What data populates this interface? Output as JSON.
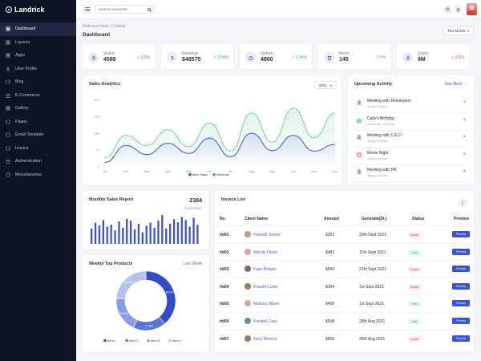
{
  "app": {
    "name": "Landrick"
  },
  "sidebar": {
    "items": [
      {
        "label": "Dashboard",
        "icon": "dashboard-icon",
        "active": true
      },
      {
        "label": "Layouts",
        "icon": "layout-icon"
      },
      {
        "label": "Apps",
        "icon": "apps-icon"
      },
      {
        "label": "User Profile",
        "icon": "user-icon"
      },
      {
        "label": "Blog",
        "icon": "blog-icon"
      },
      {
        "label": "E-Commerce",
        "icon": "cart-icon"
      },
      {
        "label": "Gallery",
        "icon": "gallery-icon"
      },
      {
        "label": "Pages",
        "icon": "pages-icon"
      },
      {
        "label": "Email Template",
        "icon": "email-icon"
      },
      {
        "label": "Invoice",
        "icon": "invoice-icon"
      },
      {
        "label": "Authentication",
        "icon": "lock-icon"
      },
      {
        "label": "Miscellaneous",
        "icon": "misc-icon"
      }
    ]
  },
  "topbar": {
    "search_placeholder": "Search Keywords..."
  },
  "header": {
    "welcome": "Welcome back, Cristina!",
    "title": "Dashboard",
    "period": "This Month"
  },
  "stats": [
    {
      "label": "Visitor",
      "value": "4589",
      "change": "0.5%",
      "trend": "down",
      "icon": "visitor-icon"
    },
    {
      "label": "Revenue",
      "value": "$48575",
      "change": "3.84%",
      "trend": "up",
      "icon": "dollar-icon"
    },
    {
      "label": "Orders",
      "value": "4800",
      "change": "1.46%",
      "trend": "up",
      "icon": "bag-icon"
    },
    {
      "label": "Items",
      "value": "145",
      "change": "0.0%",
      "trend": "flat",
      "icon": "bin-icon"
    },
    {
      "label": "Users",
      "value": "9M",
      "change": "0.5%",
      "trend": "down",
      "icon": "users-icon"
    }
  ],
  "sales_analytics": {
    "title": "Sales Analytics",
    "year": "2021",
    "chart_data": {
      "type": "line",
      "categories": [
        "Jan",
        "Feb",
        "Mar",
        "Apr",
        "May",
        "Jun",
        "Jul",
        "Aug",
        "Sep",
        "Oct",
        "Nov",
        "Dec"
      ],
      "ylim": [
        0,
        300
      ],
      "yticks": [
        "0",
        "75",
        "150",
        "225",
        "300"
      ],
      "series": [
        {
          "name": "Item Sales",
          "color": "#3b54d6",
          "values": [
            20,
            95,
            55,
            105,
            60,
            128,
            45,
            150,
            72,
            140,
            70,
            100
          ]
        },
        {
          "name": "Revenue",
          "color": "#26b978",
          "values": [
            40,
            140,
            95,
            165,
            90,
            195,
            70,
            240,
            110,
            260,
            130,
            240
          ]
        }
      ]
    }
  },
  "upcoming": {
    "title": "Upcoming Activity",
    "see_more": "See More →",
    "items": [
      {
        "title": "Meeting with Developers",
        "time": "Today 6:00pm",
        "icon": "users-icon",
        "bg": "#e9ecfa",
        "color": "#3b54d6",
        "plus_color": "#f38b2a"
      },
      {
        "title": "Cally's Birthday",
        "time": "Tomorrow 12:00am",
        "icon": "gift-icon",
        "bg": "#dcf7e9",
        "color": "#26b978",
        "plus_color": "#26b978"
      },
      {
        "title": "Meeting with C.E.O",
        "time": "Today 6:00pm",
        "icon": "users-icon",
        "bg": "#e9ecfa",
        "color": "#3b54d6",
        "plus_color": "#26b978"
      },
      {
        "title": "Movie Night",
        "time": "Today 6:00pm",
        "icon": "film-icon",
        "bg": "#fde6e7",
        "color": "#e5484d",
        "plus_color": "#26b978"
      },
      {
        "title": "Meeting with HR",
        "time": "Today 6:00pm",
        "icon": "users-icon",
        "bg": "#e9ecfa",
        "color": "#3b54d6",
        "plus_color": "#26b978"
      }
    ]
  },
  "monthly_sales": {
    "title": "Monthly Sales Report",
    "value": "2384",
    "month": "September",
    "chart_data": {
      "type": "bar",
      "color": "#3b54d6",
      "values": [
        40,
        55,
        48,
        62,
        45,
        50,
        35,
        58,
        42,
        65,
        60,
        38,
        52,
        30,
        47,
        55,
        42,
        60,
        75,
        40,
        52,
        64,
        56,
        70,
        62,
        45,
        68,
        50
      ]
    }
  },
  "weekly_products": {
    "title": "Weekly Top Products",
    "period": "Last Week",
    "chart_data": {
      "type": "pie",
      "donut": true,
      "categories": [
        "Item 1",
        "Item 2",
        "Item 3",
        "Item 4"
      ],
      "values": [
        38.9,
        17.9,
        19.4,
        23.6
      ],
      "labels": [
        "38.9%",
        "17.9%",
        "19.4%",
        "23.6%"
      ],
      "colors": [
        "#2e4bc9",
        "#5c73da",
        "#8b9be6",
        "#b6c1f0"
      ]
    }
  },
  "invoice": {
    "title": "Invoice List",
    "columns": {
      "no": "No.",
      "client": "Client Name",
      "amount": "Amount",
      "date": "Generate(Dt.)",
      "status": "Status",
      "preview": "Preview"
    },
    "preview_label": "Preview",
    "rows": [
      {
        "no": "#d01",
        "client": "Howard Tanner",
        "amount": "$253",
        "date": "23th Sept 2021",
        "status": "Unpaid",
        "avatar": "#c59a7a"
      },
      {
        "no": "#d02",
        "client": "Wendy Filson",
        "amount": "$482",
        "date": "11th Sept 2021",
        "status": "Paid",
        "avatar": "#d9a6a1"
      },
      {
        "no": "#d03",
        "client": "Faye Bridger",
        "amount": "$546",
        "date": "21th Sept 2021",
        "status": "Unpaid",
        "avatar": "#8a6a5a"
      },
      {
        "no": "#d04",
        "client": "Ronald Curtis",
        "amount": "$154",
        "date": "1st Sept 2021",
        "status": "Unpaid",
        "avatar": "#a17862"
      },
      {
        "no": "#d05",
        "client": "Melissa Hibner",
        "amount": "$458",
        "date": "1st Sept 2021",
        "status": "Paid",
        "avatar": "#d7a89a"
      },
      {
        "no": "#d06",
        "client": "Randall Case",
        "amount": "$548",
        "date": "28th Aug 2021",
        "status": "Paid",
        "avatar": "#76849a"
      },
      {
        "no": "#d07",
        "client": "Jerry Morena",
        "amount": "$658",
        "date": "25th Aug 2021",
        "status": "Unpaid",
        "avatar": "#9b7b6b"
      }
    ]
  }
}
